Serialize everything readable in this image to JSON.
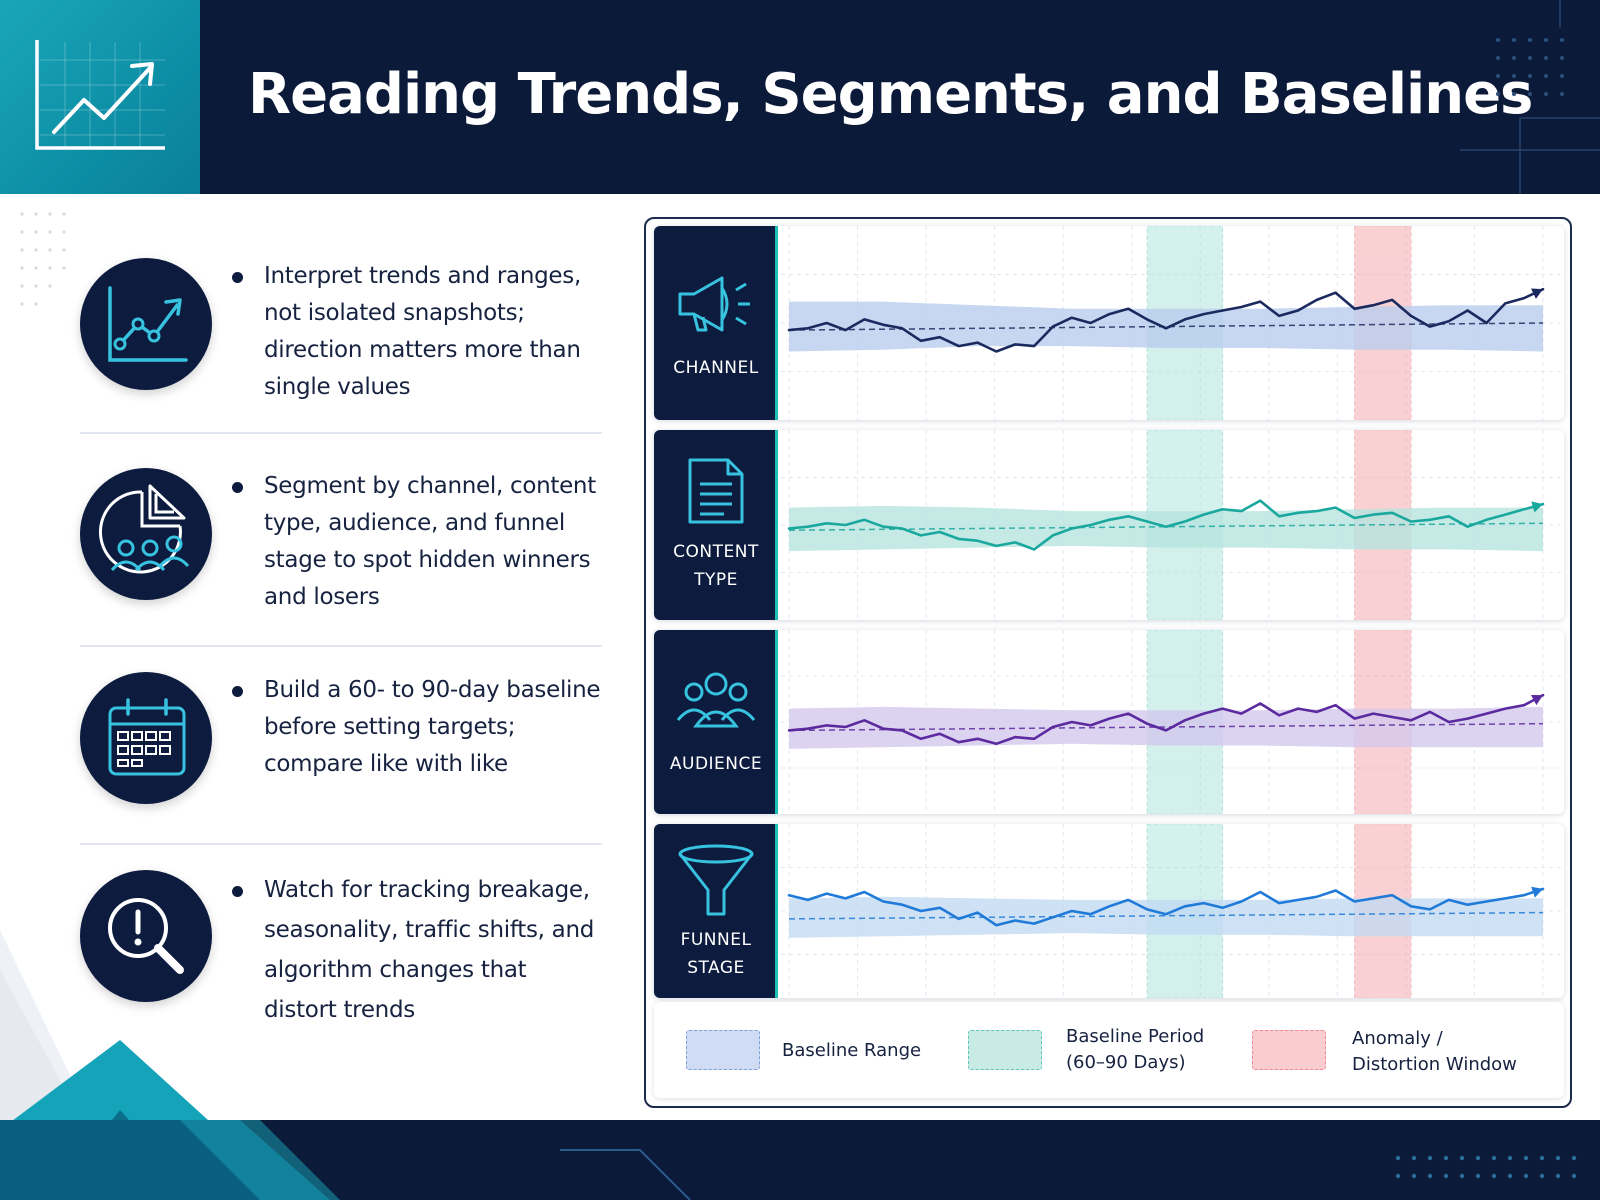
{
  "header": {
    "title": "Reading Trends, Segments, and Baselines",
    "icon": "trend-chart-icon"
  },
  "bullets": [
    {
      "icon": "trend-chart-icon",
      "text": "Interpret trends and ranges, not isolated snapshots; direction matters more than single values"
    },
    {
      "icon": "segment-pie-audience-icon",
      "text": "Segment by channel, content type, audience, and funnel stage to spot hidden winners and losers"
    },
    {
      "icon": "calendar-icon",
      "text": "Build a 60- to 90-day baseline before setting targets; compare like with like"
    },
    {
      "icon": "alert-magnifier-icon",
      "text": "Watch for tracking breakage, seasonality, traffic shifts, and algorithm changes that distort trends"
    }
  ],
  "chart_data": {
    "type": "line",
    "title": "",
    "xlabel": "",
    "ylabel": "",
    "ylim": [
      0,
      100
    ],
    "x_count": 41,
    "baseline_period_window": [
      19,
      23
    ],
    "anomaly_window": [
      30,
      33
    ],
    "colors": {
      "baseline_range": "#9fbfe8",
      "baseline_period": "#9edfd8",
      "anomaly": "#f5a3a8"
    },
    "series": [
      {
        "name": "CHANNEL",
        "icon": "megaphone-icon",
        "color": "#1b2a5e",
        "band_color": "#b9cdee",
        "values": [
          46,
          47,
          50,
          46,
          52,
          49,
          47,
          40,
          42,
          37,
          39,
          34,
          38,
          37,
          48,
          53,
          50,
          55,
          58,
          52,
          47,
          52,
          55,
          57,
          59,
          62,
          54,
          57,
          63,
          67,
          58,
          60,
          63,
          54,
          48,
          51,
          57,
          50,
          61,
          64,
          69
        ],
        "baseline_mean": [
          46,
          46.5,
          47,
          47.5,
          48,
          48.5,
          49,
          49.5,
          50
        ],
        "band_low": [
          34,
          35,
          37,
          37,
          36,
          36,
          35,
          35,
          34
        ],
        "band_high": [
          62,
          62,
          60,
          58,
          58,
          58,
          59,
          60,
          60
        ]
      },
      {
        "name": "CONTENT\nTYPE",
        "icon": "document-icon",
        "color": "#1aa89e",
        "band_color": "#b6e4de",
        "values": [
          48,
          49,
          51,
          50,
          53,
          49,
          48,
          44,
          46,
          42,
          41,
          38,
          40,
          36,
          44,
          48,
          50,
          53,
          55,
          52,
          49,
          52,
          56,
          59,
          58,
          64,
          55,
          57,
          58,
          60,
          54,
          56,
          57,
          52,
          53,
          55,
          49,
          53,
          56,
          59,
          62
        ],
        "baseline_mean": [
          47,
          47.5,
          48,
          48.5,
          49,
          49.5,
          50,
          50.5,
          51
        ],
        "band_low": [
          35,
          36,
          37,
          38,
          37,
          37,
          36,
          36,
          35
        ],
        "band_high": [
          60,
          61,
          60,
          58,
          58,
          58,
          59,
          60,
          60
        ]
      },
      {
        "name": "AUDIENCE",
        "icon": "audience-icon",
        "color": "#5b2a9e",
        "band_color": "#d3c8ee",
        "values": [
          45,
          46,
          48,
          47,
          51,
          46,
          45,
          40,
          43,
          38,
          40,
          37,
          41,
          40,
          47,
          50,
          48,
          52,
          55,
          49,
          45,
          51,
          55,
          58,
          55,
          61,
          54,
          58,
          56,
          60,
          52,
          55,
          53,
          51,
          56,
          50,
          52,
          55,
          58,
          60,
          66
        ],
        "baseline_mean": [
          45,
          45.5,
          46,
          46.5,
          47,
          47.5,
          48,
          48.5,
          49
        ],
        "band_low": [
          34,
          35,
          36,
          37,
          36,
          36,
          35,
          35,
          35
        ],
        "band_high": [
          58,
          59,
          58,
          57,
          57,
          57,
          58,
          58,
          59
        ]
      },
      {
        "name": "FUNNEL\nSTAGE",
        "icon": "funnel-icon",
        "color": "#1f7ad8",
        "band_color": "#c3d9f3",
        "values": [
          60,
          57,
          61,
          58,
          62,
          56,
          54,
          50,
          52,
          45,
          49,
          41,
          44,
          42,
          46,
          50,
          48,
          53,
          57,
          51,
          48,
          53,
          55,
          52,
          56,
          62,
          55,
          57,
          59,
          63,
          56,
          58,
          60,
          53,
          51,
          57,
          54,
          56,
          58,
          60,
          64
        ],
        "baseline_mean": [
          45,
          45.5,
          46,
          46.5,
          47,
          47.5,
          48,
          48.5,
          49
        ],
        "band_low": [
          33,
          34,
          35,
          36,
          35,
          35,
          34,
          34,
          34
        ],
        "band_high": [
          58,
          59,
          58,
          57,
          57,
          57,
          58,
          58,
          58
        ]
      }
    ]
  },
  "legend": [
    {
      "label": "Baseline Range",
      "color": "#9fbfe8"
    },
    {
      "label": "Baseline Period\n(60–90 Days)",
      "color": "#9edfd8"
    },
    {
      "label": "Anomaly /\nDistortion Window",
      "color": "#f5a3a8"
    }
  ]
}
